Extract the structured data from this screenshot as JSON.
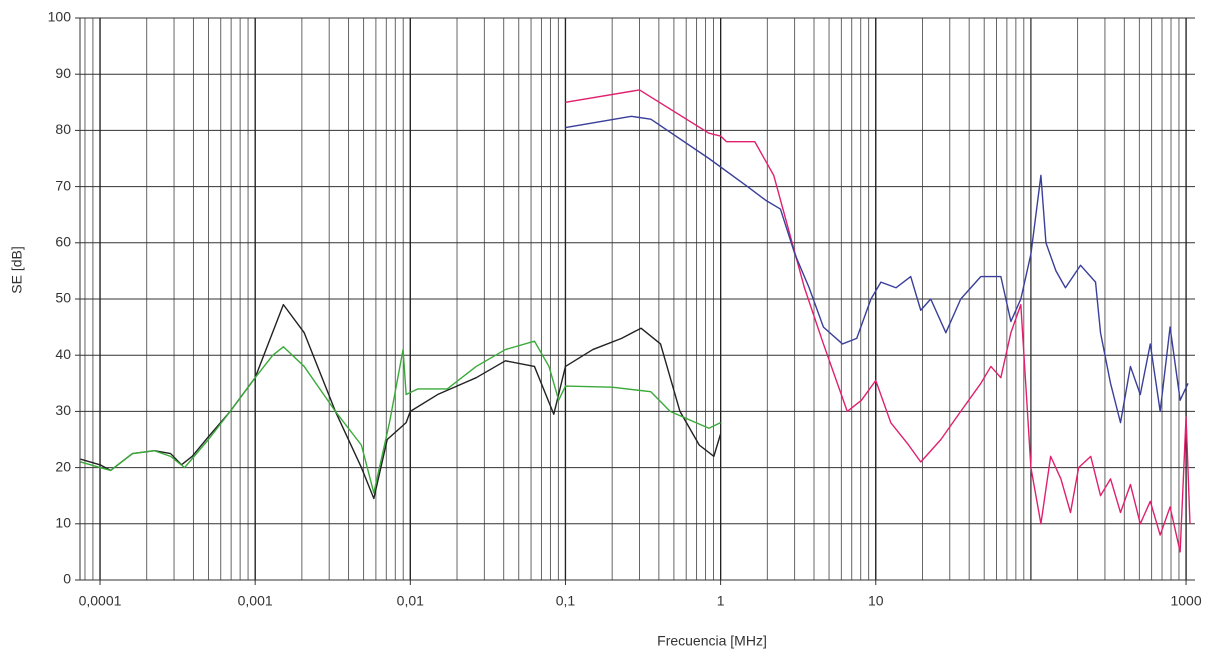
{
  "chart_data": {
    "type": "line",
    "xlabel": "Frecuencia [MHz]",
    "ylabel": "SE [dB]",
    "xscale": "log",
    "grid": true,
    "xlim": [
      7.43e-05,
      1142
    ],
    "ylim": [
      0,
      100
    ],
    "xticks": [
      {
        "value": 0.0001,
        "label": "0,0001"
      },
      {
        "value": 0.001,
        "label": "0,001"
      },
      {
        "value": 0.01,
        "label": "0,01"
      },
      {
        "value": 0.1,
        "label": "0,1"
      },
      1,
      10,
      1000
    ],
    "yticks": [
      0,
      10,
      20,
      30,
      40,
      50,
      60,
      70,
      80,
      90,
      100
    ],
    "series": [
      {
        "color": "#222222",
        "x": [
          7.5e-05,
          0.0001,
          0.000117,
          0.000162,
          0.000224,
          0.000285,
          0.000335,
          0.000393,
          0.0005,
          0.00069,
          0.001,
          0.00152,
          0.00207,
          0.00329,
          0.00484,
          0.00582,
          0.0071,
          0.0094,
          0.01,
          0.015,
          0.0266,
          0.041,
          0.0631,
          0.0841,
          0.1,
          0.15,
          0.23,
          0.307,
          0.41,
          0.547,
          0.729,
          0.904,
          1
        ],
        "values": [
          21.5,
          20.5,
          19.5,
          22.5,
          23,
          22.5,
          20.5,
          22,
          25.5,
          30,
          36,
          49,
          44,
          30,
          20,
          14.5,
          25,
          28,
          30,
          33,
          36,
          39,
          38,
          29.5,
          38,
          41,
          43,
          44.8,
          42,
          30,
          24,
          22,
          26
        ]
      },
      {
        "color": "#3aaa3a",
        "x": [
          7.5e-05,
          0.0001,
          0.000117,
          0.000162,
          0.000224,
          0.000285,
          0.000351,
          0.0005,
          0.00069,
          0.001,
          0.0013,
          0.00152,
          0.00207,
          0.00329,
          0.00484,
          0.00582,
          0.00734,
          0.00898,
          0.0094,
          0.0112,
          0.0173,
          0.0266,
          0.041,
          0.0631,
          0.0783,
          0.0904,
          0.1,
          0.2,
          0.355,
          0.473,
          0.631,
          0.841,
          1
        ],
        "values": [
          21,
          20,
          19.5,
          22.5,
          23,
          22,
          20,
          25,
          30,
          36,
          40,
          41.5,
          38,
          30,
          24,
          15.5,
          28,
          41,
          33,
          34,
          34,
          38,
          41,
          42.5,
          38,
          32,
          34.5,
          34.3,
          33.5,
          30,
          28.5,
          27,
          28
        ]
      },
      {
        "color": "#e0206e",
        "x": [
          0.1,
          0.3,
          0.841,
          1,
          1.09,
          1.66,
          2.2,
          3.47,
          4.6,
          6.55,
          8.09,
          10,
          12.5,
          16.3,
          19.5,
          26.3,
          35.3,
          47.6,
          55.2,
          64,
          74.3,
          86.1,
          100,
          116,
          134,
          156,
          180,
          203,
          243,
          281,
          326,
          378,
          438,
          507,
          588,
          681,
          789,
          916,
          1000,
          1060
        ],
        "values": [
          85,
          87.2,
          79.5,
          79,
          78,
          78,
          72,
          52,
          42,
          30,
          32,
          35.5,
          28,
          24,
          21,
          25,
          30,
          35,
          38,
          36,
          44,
          49,
          20,
          10,
          22,
          18,
          12,
          20,
          22,
          15,
          18,
          12,
          17,
          10,
          14,
          8,
          13,
          5,
          29,
          10
        ]
      },
      {
        "color": "#3a3f9a",
        "x": [
          0.1,
          0.266,
          0.355,
          0.841,
          1.49,
          1.97,
          2.43,
          3.01,
          3.72,
          4.6,
          6.1,
          7.54,
          9.31,
          10.8,
          13.5,
          16.8,
          19.5,
          22.6,
          28.3,
          35.3,
          47.6,
          64,
          74.3,
          86.1,
          100,
          116,
          125,
          145,
          167,
          209,
          261,
          281,
          326,
          378,
          438,
          507,
          588,
          681,
          789,
          916,
          1030
        ],
        "values": [
          80.5,
          82.5,
          82,
          75,
          70,
          67.5,
          66,
          58,
          52,
          45,
          42,
          43,
          50,
          53,
          52,
          54,
          48,
          50,
          44,
          50,
          54,
          54,
          46,
          50,
          58,
          72,
          60,
          55,
          52,
          56,
          53,
          44,
          35,
          28,
          38,
          33,
          42,
          30,
          45,
          32,
          35
        ]
      }
    ]
  }
}
